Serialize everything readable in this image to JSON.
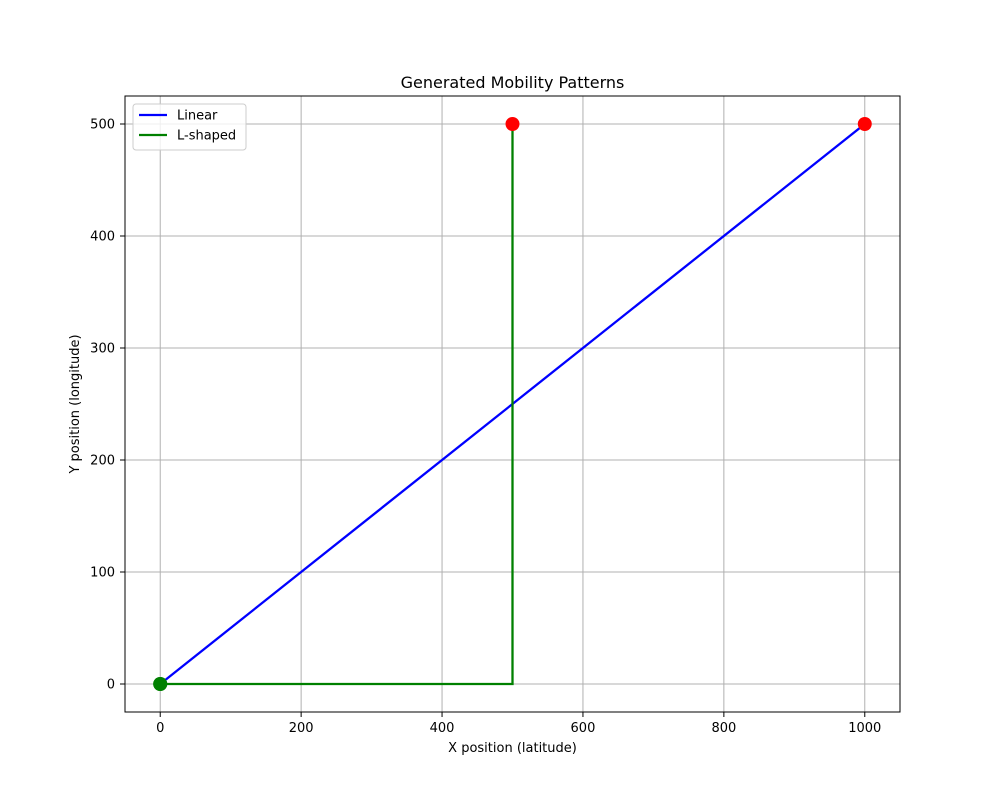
{
  "chart_data": {
    "type": "line",
    "title": "Generated Mobility Patterns",
    "xlabel": "X position (latitude)",
    "ylabel": "Y position (longitude)",
    "xlim": [
      -50,
      1050
    ],
    "ylim": [
      -25,
      525
    ],
    "xticks": [
      0,
      200,
      400,
      600,
      800,
      1000
    ],
    "yticks": [
      0,
      100,
      200,
      300,
      400,
      500
    ],
    "grid": true,
    "legend_position": "upper-left",
    "series": [
      {
        "name": "Linear",
        "color": "#0000ff",
        "x": [
          0,
          1000
        ],
        "y": [
          0,
          500
        ]
      },
      {
        "name": "L-shaped",
        "color": "#008000",
        "x": [
          0,
          500,
          500
        ],
        "y": [
          0,
          0,
          500
        ]
      }
    ],
    "markers": [
      {
        "series": "Linear",
        "role": "start",
        "x": 0,
        "y": 0,
        "color": "#008000"
      },
      {
        "series": "Linear",
        "role": "end",
        "x": 1000,
        "y": 500,
        "color": "#ff0000"
      },
      {
        "series": "L-shaped",
        "role": "start",
        "x": 0,
        "y": 0,
        "color": "#008000"
      },
      {
        "series": "L-shaped",
        "role": "end",
        "x": 500,
        "y": 500,
        "color": "#ff0000"
      }
    ]
  }
}
